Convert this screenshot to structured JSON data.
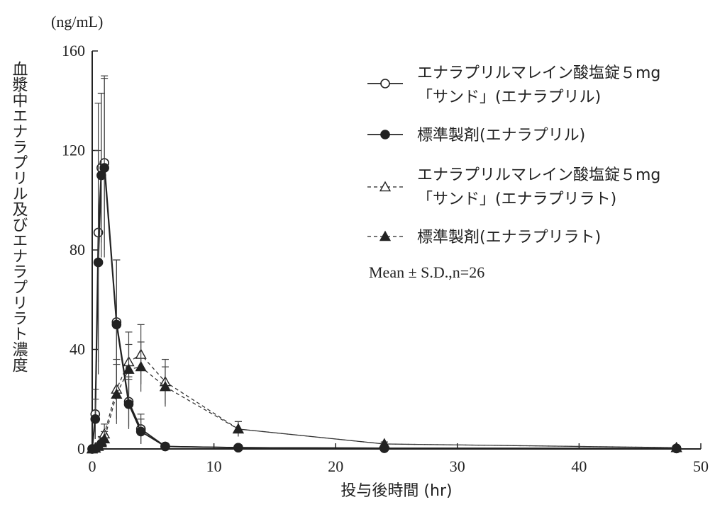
{
  "chart_data": {
    "type": "line",
    "unit_label": "(ng/mL)",
    "ylabel": "血漿中エナラプリル及びエナラプリラト濃度",
    "xlabel": "投与後時間 (hr)",
    "xlim": [
      0,
      50
    ],
    "ylim": [
      0,
      160
    ],
    "xticks": [
      0,
      10,
      20,
      30,
      40,
      50
    ],
    "yticks": [
      0,
      40,
      80,
      120,
      160
    ],
    "grid": false,
    "legend_position": "top-right",
    "note": "Mean ± S.D.,n=26",
    "series": [
      {
        "name_lines": [
          "エナラプリルマレイン酸塩錠５mg",
          "「サンド」(エナラプリル)"
        ],
        "marker": "circle-open",
        "line": "solid",
        "x": [
          0,
          0.25,
          0.5,
          0.75,
          1,
          2,
          3,
          4,
          6,
          12,
          24,
          48
        ],
        "y": [
          0,
          14,
          87,
          113,
          115,
          51,
          19,
          8,
          1,
          0.5,
          0.3,
          0.2
        ],
        "sd": [
          0,
          10,
          52,
          30,
          35,
          25,
          10,
          6,
          0.5,
          0.2,
          0.1,
          0.1
        ]
      },
      {
        "name_lines": [
          "標準製剤(エナラプリル)"
        ],
        "marker": "circle-filled",
        "line": "solid",
        "x": [
          0,
          0.25,
          0.5,
          0.75,
          1,
          2,
          3,
          4,
          6,
          12,
          24,
          48
        ],
        "y": [
          0,
          12,
          75,
          110,
          113,
          50,
          18,
          7,
          1,
          0.5,
          0.3,
          0.2
        ],
        "sd": [
          0,
          8,
          45,
          33,
          36,
          26,
          10,
          5,
          0.5,
          0.2,
          0.1,
          0.1
        ]
      },
      {
        "name_lines": [
          "エナラプリルマレイン酸塩錠５mg",
          "「サンド」(エナラプリラト)"
        ],
        "marker": "triangle-open",
        "line": "dashed",
        "x": [
          0,
          0.25,
          0.5,
          0.75,
          1,
          2,
          3,
          4,
          6,
          12,
          24,
          48
        ],
        "y": [
          0,
          0.3,
          1.5,
          3,
          6,
          24,
          35,
          38,
          27,
          8,
          2,
          0.5
        ],
        "sd": [
          0,
          0.3,
          1,
          2,
          4,
          12,
          12,
          12,
          9,
          3,
          0.8,
          0.3
        ]
      },
      {
        "name_lines": [
          "標準製剤(エナラプリラト)"
        ],
        "marker": "triangle-filled",
        "line": "dashed",
        "x": [
          0,
          0.25,
          0.5,
          0.75,
          1,
          2,
          3,
          4,
          6,
          12,
          24,
          48
        ],
        "y": [
          0,
          0.3,
          1,
          2.5,
          4,
          22,
          32,
          33,
          25,
          8,
          2,
          0.5
        ],
        "sd": [
          0,
          0.3,
          1,
          2,
          3,
          12,
          10,
          10,
          8,
          3,
          0.8,
          0.3
        ]
      }
    ]
  }
}
